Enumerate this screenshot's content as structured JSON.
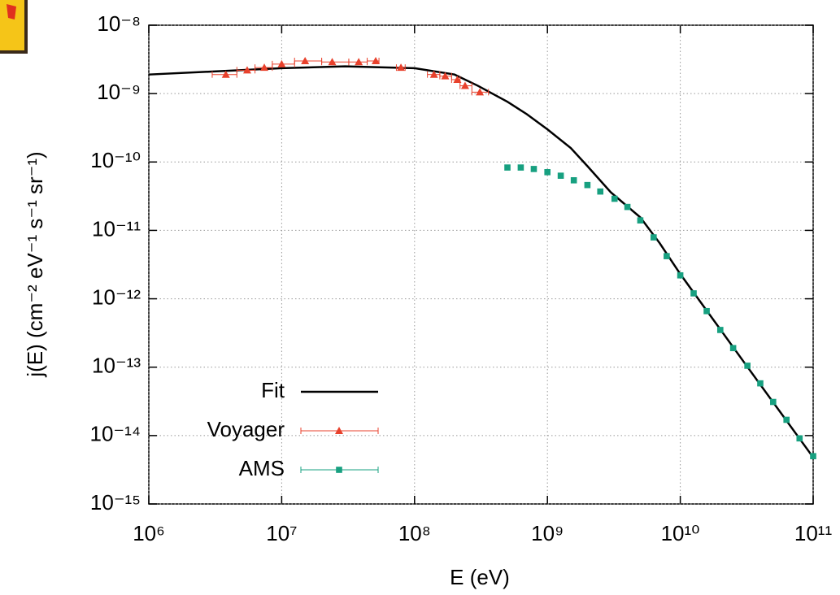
{
  "chart_data": {
    "type": "scatter",
    "xscale": "log",
    "yscale": "log",
    "x_label": "E (eV)",
    "y_label": "j(E) (cm⁻² eV⁻¹ s⁻¹ sr⁻¹)",
    "xlim": [
      1000000.0,
      100000000000.0
    ],
    "ylim": [
      1e-15,
      1e-08
    ],
    "xticks": [
      {
        "value": 1000000.0,
        "label": "10⁶"
      },
      {
        "value": 10000000.0,
        "label": "10⁷"
      },
      {
        "value": 100000000.0,
        "label": "10⁸"
      },
      {
        "value": 1000000000.0,
        "label": "10⁹"
      },
      {
        "value": 10000000000.0,
        "label": "10¹⁰"
      },
      {
        "value": 100000000000.0,
        "label": "10¹¹"
      }
    ],
    "yticks": [
      {
        "value": 1e-15,
        "label": "10⁻¹⁵"
      },
      {
        "value": 1e-14,
        "label": "10⁻¹⁴"
      },
      {
        "value": 1e-13,
        "label": "10⁻¹³"
      },
      {
        "value": 1e-12,
        "label": "10⁻¹²"
      },
      {
        "value": 1e-11,
        "label": "10⁻¹¹"
      },
      {
        "value": 1e-10,
        "label": "10⁻¹⁰"
      },
      {
        "value": 1e-09,
        "label": "10⁻⁹"
      },
      {
        "value": 1e-08,
        "label": "10⁻⁸"
      }
    ],
    "grid": true,
    "legend": "lower left",
    "series": [
      {
        "name": "Fit",
        "type": "line",
        "color": "#000000",
        "x": [
          1000000.0,
          3000000.0,
          10000000.0,
          30000000.0,
          100000000.0,
          200000000.0,
          300000000.0,
          500000000.0,
          700000000.0,
          1000000000.0,
          1500000000.0,
          2000000000.0,
          3000000000.0,
          5000000000.0,
          7000000000.0,
          10000000000.0,
          30000000000.0,
          100000000000.0
        ],
        "values": [
          1.9e-09,
          2.1e-09,
          2.35e-09,
          2.5e-09,
          2.35e-09,
          1.9e-09,
          1.3e-09,
          7.6e-10,
          5e-10,
          3e-10,
          1.6e-10,
          8.7e-11,
          3.6e-11,
          1.55e-11,
          6.5e-12,
          2.3e-12,
          1.2e-13,
          4.8e-15
        ]
      },
      {
        "name": "Voyager",
        "type": "scatter",
        "marker": "triangle",
        "color": "#e8412c",
        "x": [
          3800000.0,
          5500000.0,
          7400000.0,
          10000000.0,
          15000000.0,
          24000000.0,
          38000000.0,
          51000000.0,
          79000000.0,
          140000000.0,
          170000000.0,
          210000000.0,
          240000000.0,
          310000000.0
        ],
        "values": [
          1.9e-09,
          2.2e-09,
          2.4e-09,
          2.7e-09,
          3e-09,
          2.9e-09,
          2.9e-09,
          3e-09,
          2.4e-09,
          1.9e-09,
          1.8e-09,
          1.6e-09,
          1.3e-09,
          1.05e-09
        ],
        "x_low": [
          3000000.0,
          4600000.0,
          6300000.0,
          8500000.0,
          12500000.0,
          20000000.0,
          32000000.0,
          44000000.0,
          73000000.0,
          125000000.0,
          155000000.0,
          190000000.0,
          220000000.0,
          270000000.0
        ],
        "x_high": [
          4600000.0,
          6300000.0,
          8500000.0,
          12500000.0,
          20000000.0,
          32000000.0,
          44000000.0,
          54000000.0,
          85000000.0,
          155000000.0,
          190000000.0,
          220000000.0,
          270000000.0,
          360000000.0
        ]
      },
      {
        "name": "AMS",
        "type": "scatter",
        "marker": "square",
        "color": "#17a080",
        "x": [
          500000000.0,
          630000000.0,
          790000000.0,
          1000000000.0,
          1260000000.0,
          1580000000.0,
          2000000000.0,
          2500000000.0,
          3200000000.0,
          4000000000.0,
          5000000000.0,
          6300000000.0,
          7900000000.0,
          10000000000.0,
          12600000000.0,
          15800000000.0,
          20000000000.0,
          25000000000.0,
          32000000000.0,
          40000000000.0,
          50000000000.0,
          63000000000.0,
          79000000000.0,
          100000000000.0
        ],
        "values": [
          8.3e-11,
          8.3e-11,
          7.9e-11,
          7.1e-11,
          6.3e-11,
          5.4e-11,
          4.6e-11,
          3.7e-11,
          2.9e-11,
          2.2e-11,
          1.4e-11,
          7.9e-12,
          4.2e-12,
          2.2e-12,
          1.2e-12,
          6.6e-13,
          3.5e-13,
          1.9e-13,
          1.05e-13,
          5.8e-14,
          3.1e-14,
          1.7e-14,
          9.1e-15,
          5e-15
        ]
      }
    ]
  }
}
